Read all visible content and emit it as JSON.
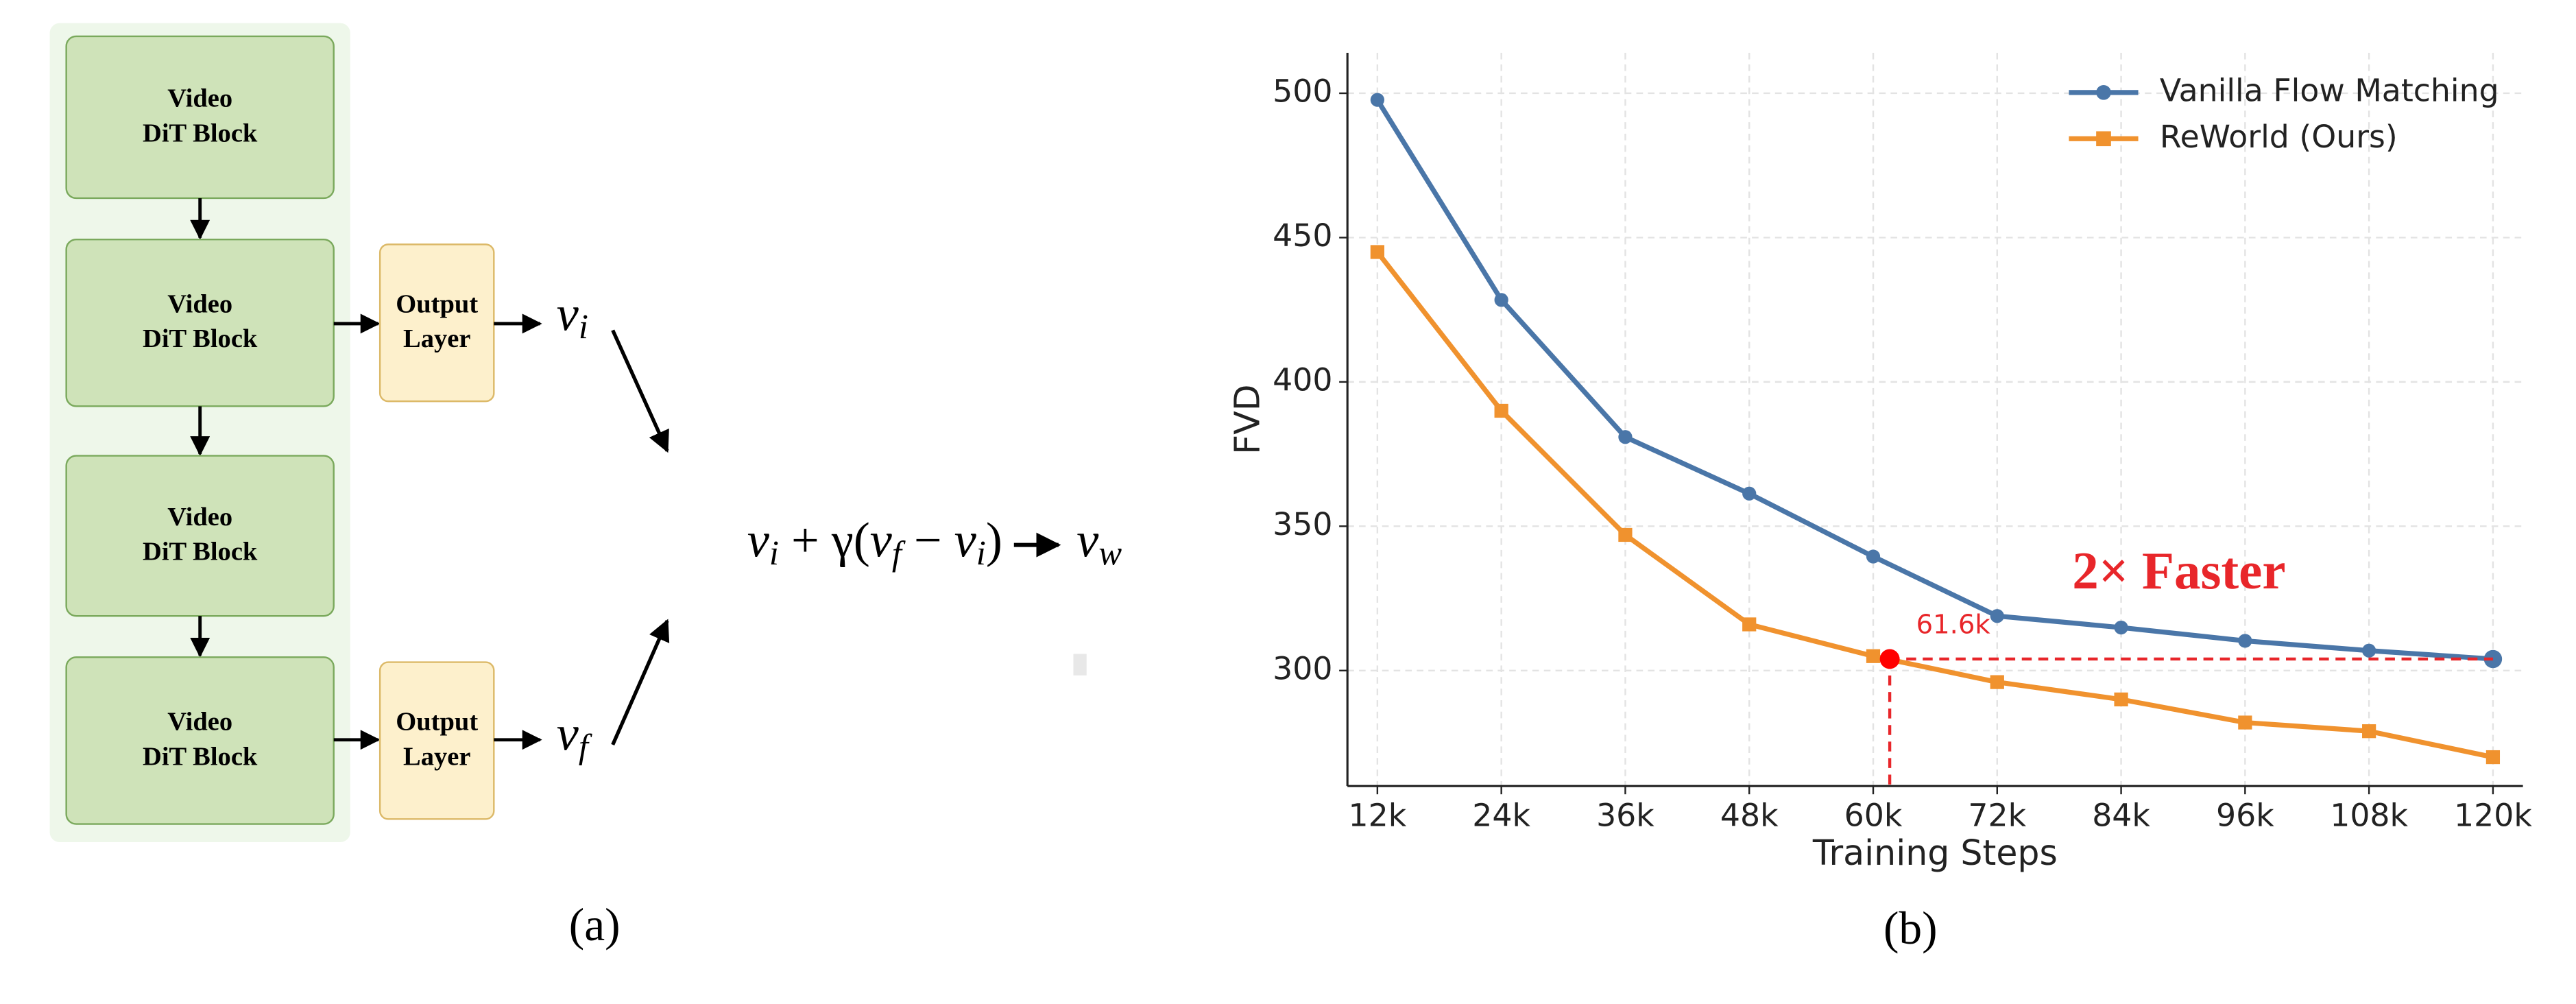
{
  "diagram": {
    "blocks": [
      {
        "lines": [
          "Video",
          "DiT Block"
        ]
      },
      {
        "lines": [
          "Video",
          "DiT Block"
        ]
      },
      {
        "lines": [
          "Video",
          "DiT Block"
        ]
      },
      {
        "lines": [
          "Video",
          "DiT Block"
        ]
      }
    ],
    "outputs": [
      {
        "lines": [
          "Output",
          "Layer"
        ]
      },
      {
        "lines": [
          "Output",
          "Layer"
        ]
      }
    ],
    "v_i": [
      {
        "text": "v"
      },
      {
        "subscript": "i"
      }
    ],
    "v_f": [
      {
        "text": "v"
      },
      {
        "subscript": "f"
      }
    ],
    "equation": [
      {
        "text": "v"
      },
      {
        "subscript": "i"
      },
      {
        "text": " + γ("
      },
      {
        "text": "v"
      },
      {
        "subscript": "f"
      },
      {
        "text": " − "
      },
      {
        "text": "v"
      },
      {
        "subscript": "i"
      },
      {
        "text": ")"
      }
    ],
    "result": [
      {
        "text": "v"
      },
      {
        "subscript": "w"
      }
    ]
  },
  "captions": [
    "(a)",
    "(b)"
  ],
  "chart_data": {
    "type": "line",
    "x_label": "Training Steps",
    "y_label": "FVD",
    "x": [
      12000,
      24000,
      36000,
      48000,
      60000,
      72000,
      84000,
      96000,
      108000,
      120000
    ],
    "series": [
      {
        "name": "Vanilla Flow Matching",
        "color": "#4a76a8",
        "marker": "circle",
        "values": [
          497.7,
          428.4,
          380.9,
          361.3,
          339.5,
          318.9,
          314.9,
          310.3,
          306.9,
          304.0
        ]
      },
      {
        "name": "ReWorld (Ours)",
        "color": "#f0922e",
        "marker": "square",
        "values": [
          445,
          390,
          347,
          316,
          305,
          296,
          290,
          282,
          279,
          270
        ]
      }
    ],
    "xlim": [
      9100,
      122900
    ],
    "ylim": [
      260,
      514
    ],
    "xticks": [
      {
        "value": 12000,
        "label": "12k"
      },
      {
        "value": 24000,
        "label": "24k"
      },
      {
        "value": 36000,
        "label": "36k"
      },
      {
        "value": 48000,
        "label": "48k"
      },
      {
        "value": 60000,
        "label": "60k"
      },
      {
        "value": 72000,
        "label": "72k"
      },
      {
        "value": 84000,
        "label": "84k"
      },
      {
        "value": 96000,
        "label": "96k"
      },
      {
        "value": 108000,
        "label": "108k"
      },
      {
        "value": 120000,
        "label": "120k"
      }
    ],
    "yticks": [
      300,
      350,
      400,
      450,
      500
    ],
    "grid": true,
    "legend": "upper right",
    "annotation": {
      "x": 61600,
      "y": 304,
      "label": "61.6k",
      "color": "#e8262a",
      "text": "2× Faster"
    }
  }
}
